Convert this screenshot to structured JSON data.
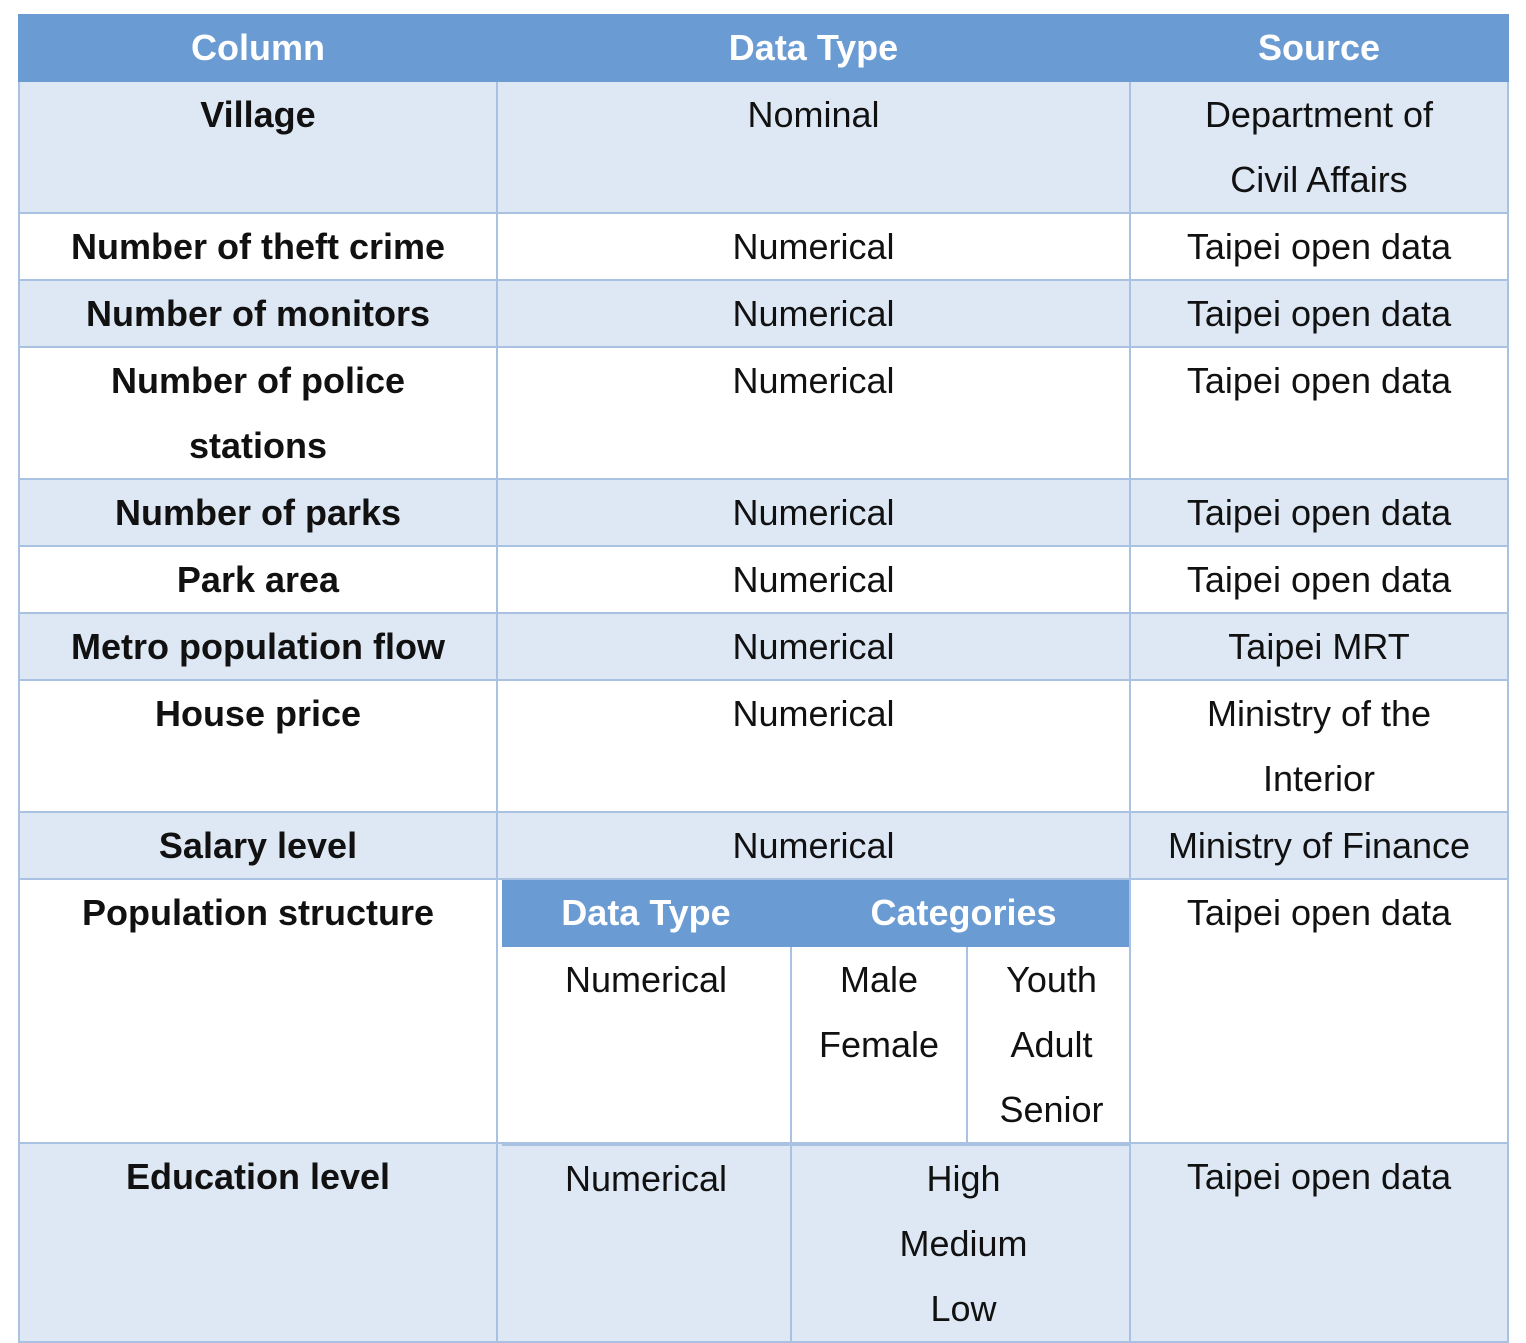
{
  "headers": [
    "Column",
    "Data Type",
    "Source"
  ],
  "rows": [
    {
      "column": "Village",
      "type": "Nominal",
      "source": [
        "Department of",
        "Civil Affairs"
      ]
    },
    {
      "column": "Number of theft crime",
      "type": "Numerical",
      "source": [
        "Taipei open data"
      ]
    },
    {
      "column": "Number of monitors",
      "type": "Numerical",
      "source": [
        "Taipei open data"
      ]
    },
    {
      "column": [
        "Number of police",
        "stations"
      ],
      "type": "Numerical",
      "source": [
        "Taipei open data"
      ]
    },
    {
      "column": "Number of parks",
      "type": "Numerical",
      "source": [
        "Taipei open data"
      ]
    },
    {
      "column": "Park area",
      "type": "Numerical",
      "source": [
        "Taipei open data"
      ]
    },
    {
      "column": "Metro population flow",
      "type": "Numerical",
      "source": [
        "Taipei MRT"
      ]
    },
    {
      "column": "House price",
      "type": "Numerical",
      "source": [
        "Ministry of the",
        "Interior"
      ]
    },
    {
      "column": "Salary level",
      "type": "Numerical",
      "source": [
        "Ministry of Finance"
      ]
    }
  ],
  "population_structure": {
    "column": "Population structure",
    "sub_headers": [
      "Data Type",
      "Categories"
    ],
    "type": "Numerical",
    "categories_gender": [
      "Male",
      "Female"
    ],
    "categories_age": [
      "Youth",
      "Adult",
      "Senior"
    ],
    "source": "Taipei open data"
  },
  "education_level": {
    "column": "Education level",
    "type": "Numerical",
    "categories": [
      "High",
      "Medium",
      "Low"
    ],
    "source": "Taipei open data"
  }
}
